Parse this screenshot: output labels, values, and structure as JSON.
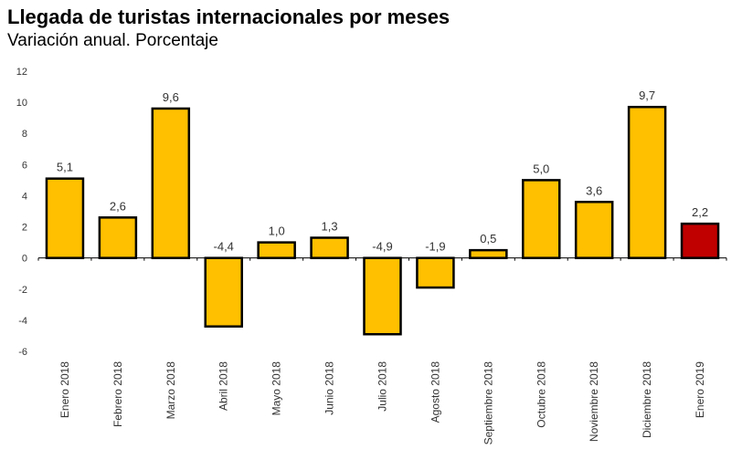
{
  "chart_data": {
    "type": "bar",
    "title": "Llegada de turistas internacionales por meses",
    "subtitle": "Variación anual. Porcentaje",
    "xlabel": "",
    "ylabel": "",
    "ylim": [
      -6,
      12
    ],
    "yticks": [
      12,
      10,
      8,
      6,
      4,
      2,
      0,
      -2,
      -4,
      -6
    ],
    "grid": false,
    "legend": "none",
    "categories": [
      "Enero 2018",
      "Febrero 2018",
      "Marzo 2018",
      "Abril 2018",
      "Mayo 2018",
      "Junio 2018",
      "Julio 2018",
      "Agosto 2018",
      "Septiembre 2018",
      "Octubre 2018",
      "Noviembre 2018",
      "Diciembre 2018",
      "Enero 2019"
    ],
    "values": [
      5.1,
      2.6,
      9.6,
      -4.4,
      1.0,
      1.3,
      -4.9,
      -1.9,
      0.5,
      5.0,
      3.6,
      9.7,
      2.2
    ],
    "value_labels": [
      "5,1",
      "2,6",
      "9,6",
      "-4,4",
      "1,0",
      "1,3",
      "-4,9",
      "-1,9",
      "0,5",
      "5,0",
      "3,6",
      "9,7",
      "2,2"
    ],
    "colors": {
      "default_bar": "#ffc000",
      "highlight_bar": "#c00000",
      "bar_border": "#000000"
    },
    "highlight_index": 12
  }
}
